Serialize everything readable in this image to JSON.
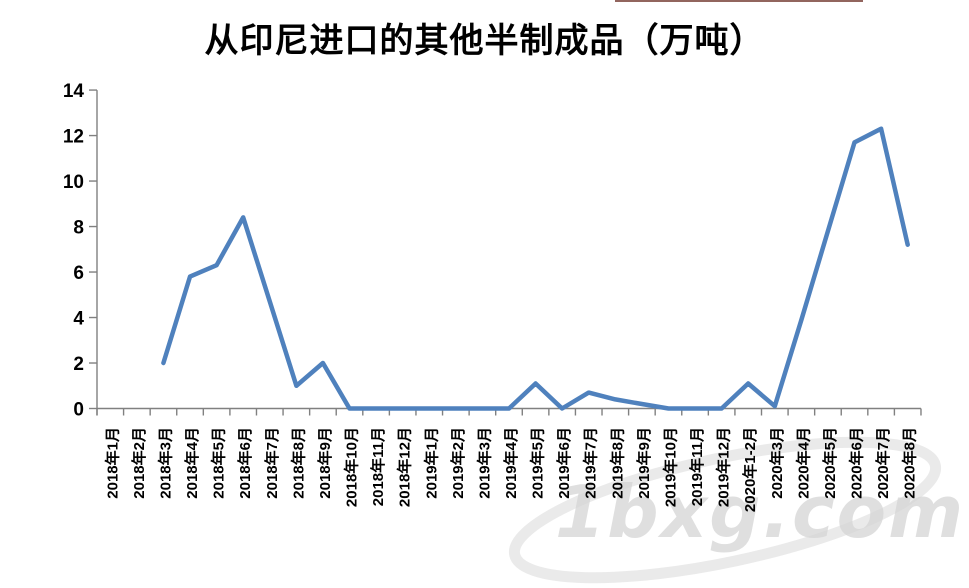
{
  "page": {
    "background": "#ffffff"
  },
  "artifacts": {
    "top_edge_line_color": "#7f4a42"
  },
  "watermark": {
    "text": "1bxg.com",
    "color": "#d5d5d5"
  },
  "chart_data": {
    "type": "line",
    "title": "从印尼进口的其他半制成品（万吨）",
    "xlabel": "",
    "ylabel": "",
    "ylim": [
      0,
      14
    ],
    "yticks": [
      0,
      2,
      4,
      6,
      8,
      10,
      12,
      14
    ],
    "grid": false,
    "legend_position": "none",
    "line_color": "#4F81BD",
    "axis_color": "#808080",
    "tick_label_color": "#000000",
    "categories": [
      "2018年1月",
      "2018年2月",
      "2018年3月",
      "2018年4月",
      "2018年5月",
      "2018年6月",
      "2018年7月",
      "2018年8月",
      "2018年9月",
      "2018年10月",
      "2018年11月",
      "2018年12月",
      "2019年1月",
      "2019年2月",
      "2019年3月",
      "2019年4月",
      "2019年5月",
      "2019年6月",
      "2019年7月",
      "2019年8月",
      "2019年9月",
      "2019年10月",
      "2019年11月",
      "2019年12月",
      "2020年1-2月",
      "2020年3月",
      "2020年4月",
      "2020年5月",
      "2020年6月",
      "2020年7月",
      "2020年8月"
    ],
    "values": [
      null,
      null,
      2.0,
      5.8,
      6.3,
      8.4,
      4.7,
      1.0,
      2.0,
      0,
      0,
      0,
      0,
      0,
      0,
      0,
      1.1,
      0,
      0.7,
      0.4,
      0.2,
      0,
      0,
      0,
      1.1,
      0.1,
      3.9,
      7.8,
      11.7,
      12.3,
      7.2
    ]
  }
}
